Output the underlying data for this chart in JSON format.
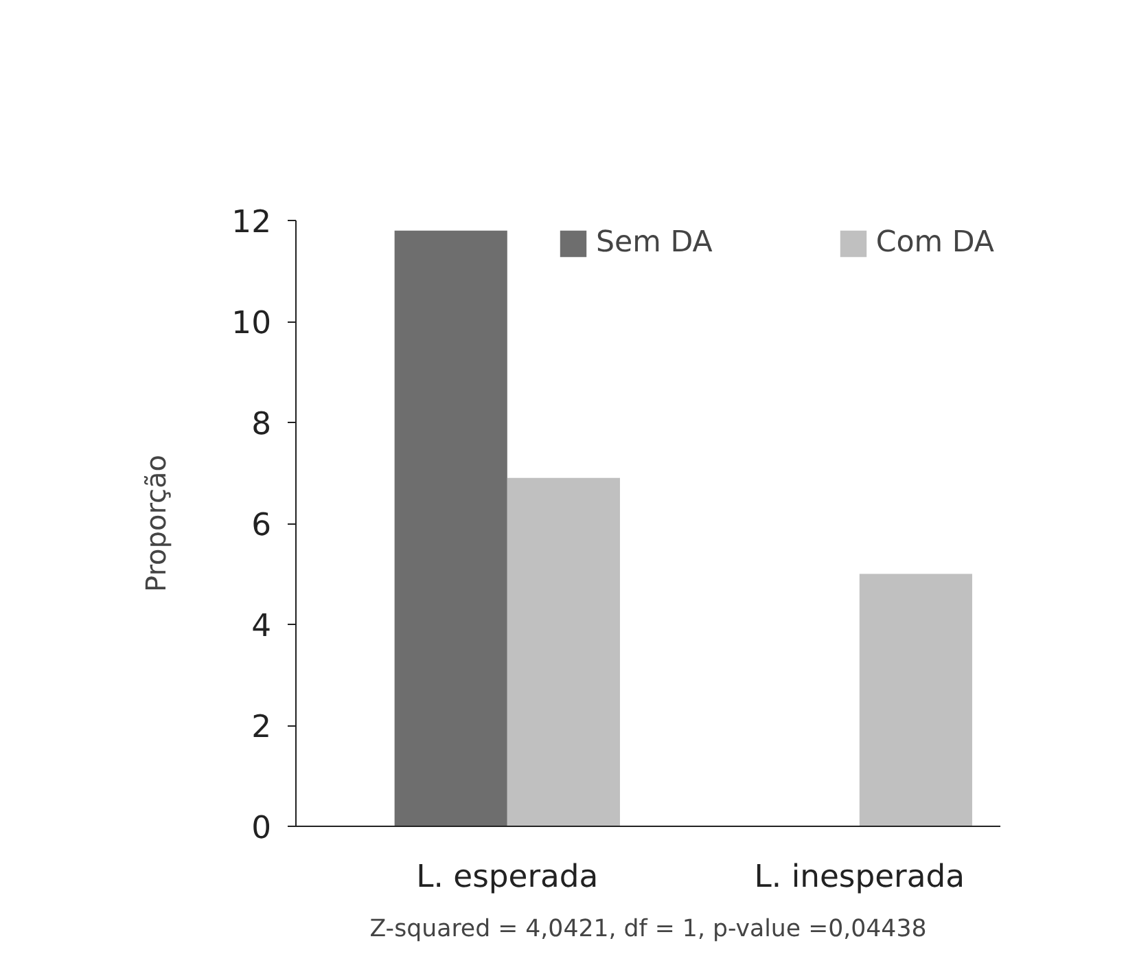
{
  "chart_data": {
    "type": "bar",
    "ylabel": "Proporção",
    "categories": [
      "L. esperada",
      "L. inesperada"
    ],
    "series": [
      {
        "name": "Sem DA",
        "color": "#6e6e6e",
        "values": [
          11.8,
          0
        ]
      },
      {
        "name": "Com DA",
        "color": "#c0c0c0",
        "values": [
          6.9,
          5.0
        ]
      }
    ],
    "ylim": [
      0,
      12
    ],
    "yticks": [
      0,
      2,
      4,
      6,
      8,
      10,
      12
    ],
    "grid": false,
    "legend": "top",
    "annotations": [
      "Z-squared = 4,0421, df = 1, p-value =0,04438"
    ]
  }
}
